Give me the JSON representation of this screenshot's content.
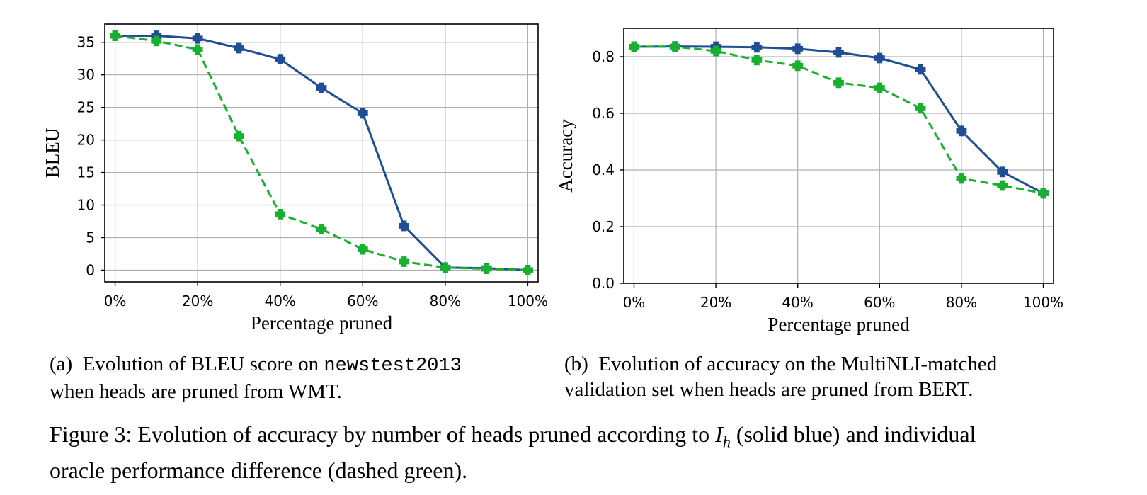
{
  "chart_data": [
    {
      "type": "line",
      "x": [
        0,
        10,
        20,
        30,
        40,
        50,
        60,
        70,
        80,
        90,
        100
      ],
      "xtick_values": [
        0,
        20,
        40,
        60,
        80,
        100
      ],
      "xticks": [
        "0%",
        "20%",
        "40%",
        "60%",
        "80%",
        "100%"
      ],
      "ytick_values": [
        0,
        5,
        10,
        15,
        20,
        25,
        30,
        35
      ],
      "yticks": [
        "0",
        "5",
        "10",
        "15",
        "20",
        "25",
        "30",
        "35"
      ],
      "xlim": [
        -2.5,
        102.5
      ],
      "ylim": [
        -1.8,
        37.8
      ],
      "xlabel": "Percentage pruned",
      "ylabel": "BLEU",
      "grid": true,
      "series": [
        {
          "style": "solid",
          "color": "#1f4e94",
          "values": [
            36.0,
            36.0,
            35.6,
            34.1,
            32.4,
            28.0,
            24.1,
            6.8,
            0.4,
            0.3,
            0.0
          ]
        },
        {
          "style": "dashed",
          "color": "#17b02f",
          "values": [
            36.0,
            35.2,
            33.9,
            20.6,
            8.6,
            6.3,
            3.2,
            1.3,
            0.4,
            0.2,
            0.0
          ]
        }
      ]
    },
    {
      "type": "line",
      "x": [
        0,
        10,
        20,
        30,
        40,
        50,
        60,
        70,
        80,
        90,
        100
      ],
      "xtick_values": [
        0,
        20,
        40,
        60,
        80,
        100
      ],
      "xticks": [
        "0%",
        "20%",
        "40%",
        "60%",
        "80%",
        "100%"
      ],
      "ytick_values": [
        0.0,
        0.2,
        0.4,
        0.6,
        0.8
      ],
      "yticks": [
        "0.0",
        "0.2",
        "0.4",
        "0.6",
        "0.8"
      ],
      "xlim": [
        -2.5,
        102.5
      ],
      "ylim": [
        0.0,
        0.9
      ],
      "xlabel": "Percentage pruned",
      "ylabel": "Accuracy",
      "grid": true,
      "series": [
        {
          "style": "solid",
          "color": "#1f4e94",
          "values": [
            0.835,
            0.836,
            0.835,
            0.833,
            0.828,
            0.815,
            0.795,
            0.755,
            0.538,
            0.393,
            0.318
          ]
        },
        {
          "style": "dashed",
          "color": "#17b02f",
          "values": [
            0.835,
            0.835,
            0.82,
            0.788,
            0.768,
            0.708,
            0.69,
            0.618,
            0.37,
            0.345,
            0.318
          ]
        }
      ]
    }
  ],
  "captions": {
    "a_label": "(a)",
    "a_text1": "Evolution of BLEU score on",
    "a_code": "newstest2013",
    "a_text2": "when heads are pruned from WMT.",
    "b_label": "(b)",
    "b_text1": "Evolution of accuracy on the MultiNLI-matched",
    "b_text2": "validation set when heads are pruned from BERT."
  },
  "figure_caption": {
    "part1": "Figure 3: Evolution of accuracy by number of heads pruned according to ",
    "symbol": "I",
    "subscript": "h",
    "part2": " (solid blue) and individual",
    "line2": "oracle performance difference (dashed green)."
  }
}
